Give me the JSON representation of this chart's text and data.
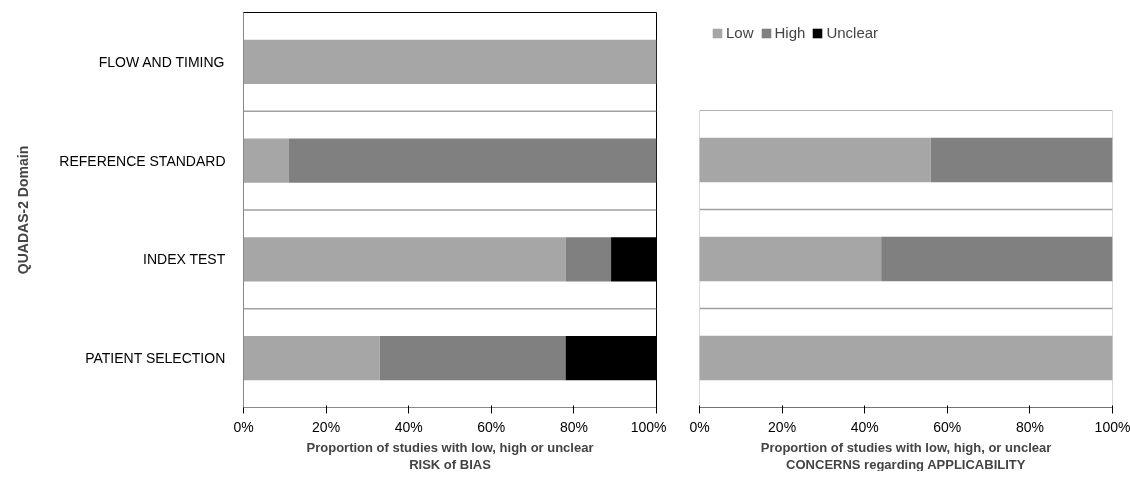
{
  "chart_data": [
    {
      "type": "bar",
      "orientation": "horizontal",
      "stacked": true,
      "ylabel": "QUADAS-2 Domain",
      "xlabel": "Proportion of studies with low, high or unclear\nRISK of BIAS",
      "categories": [
        "FLOW AND TIMING",
        "REFERENCE STANDARD",
        "INDEX TEST",
        "PATIENT SELECTION"
      ],
      "series": [
        {
          "color": "#a6a6a6",
          "values": [
            100,
            11,
            78,
            33
          ]
        },
        {
          "color": "#808080",
          "values": [
            0,
            89,
            11,
            45
          ]
        },
        {
          "color": "#000000",
          "values": [
            0,
            0,
            11,
            22
          ]
        }
      ],
      "xlim": [
        0,
        100
      ],
      "xticks": [
        {
          "value": 0,
          "label": "0%"
        },
        {
          "value": 20,
          "label": "20%"
        },
        {
          "value": 40,
          "label": "40%"
        },
        {
          "value": 60,
          "label": "60%"
        },
        {
          "value": 80,
          "label": "80%"
        },
        {
          "value": 100,
          "label": "100%"
        }
      ],
      "grid": "y",
      "legend": false
    },
    {
      "type": "bar",
      "orientation": "horizontal",
      "stacked": true,
      "xlabel": "Proportion of studies with low, high, or unclear\nCONCERNS regarding APPLICABILITY",
      "categories": [
        null,
        null,
        null
      ],
      "series": [
        {
          "name": "Low",
          "color": "#a6a6a6",
          "values": [
            56,
            44,
            100
          ]
        },
        {
          "name": "High",
          "color": "#808080",
          "values": [
            44,
            56,
            0
          ]
        },
        {
          "name": "Unclear",
          "color": "#000000",
          "values": [
            0,
            0,
            0
          ]
        }
      ],
      "xlim": [
        0,
        100
      ],
      "xticks": [
        {
          "value": 0,
          "label": "0%"
        },
        {
          "value": 20,
          "label": "20%"
        },
        {
          "value": 40,
          "label": "40%"
        },
        {
          "value": 60,
          "label": "60%"
        },
        {
          "value": 80,
          "label": "80%"
        },
        {
          "value": 100,
          "label": "100%"
        }
      ],
      "grid": "y",
      "legend": "top"
    }
  ]
}
